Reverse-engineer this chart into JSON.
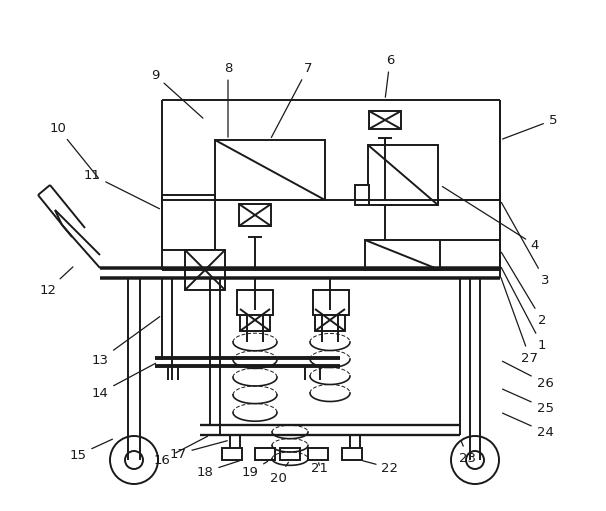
{
  "background_color": "#ffffff",
  "line_color": "#1a1a1a",
  "line_width": 1.4,
  "label_fontsize": 9.5,
  "label_color": "#1a1a1a"
}
